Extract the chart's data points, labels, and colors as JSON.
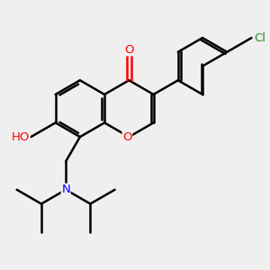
{
  "bg_color": "#efefef",
  "bond_color": "#000000",
  "bond_width": 1.8,
  "atom_colors": {
    "O": "#ff0000",
    "N": "#0000ff",
    "Cl": "#228B22",
    "C": "#000000"
  },
  "font_size": 9.5
}
